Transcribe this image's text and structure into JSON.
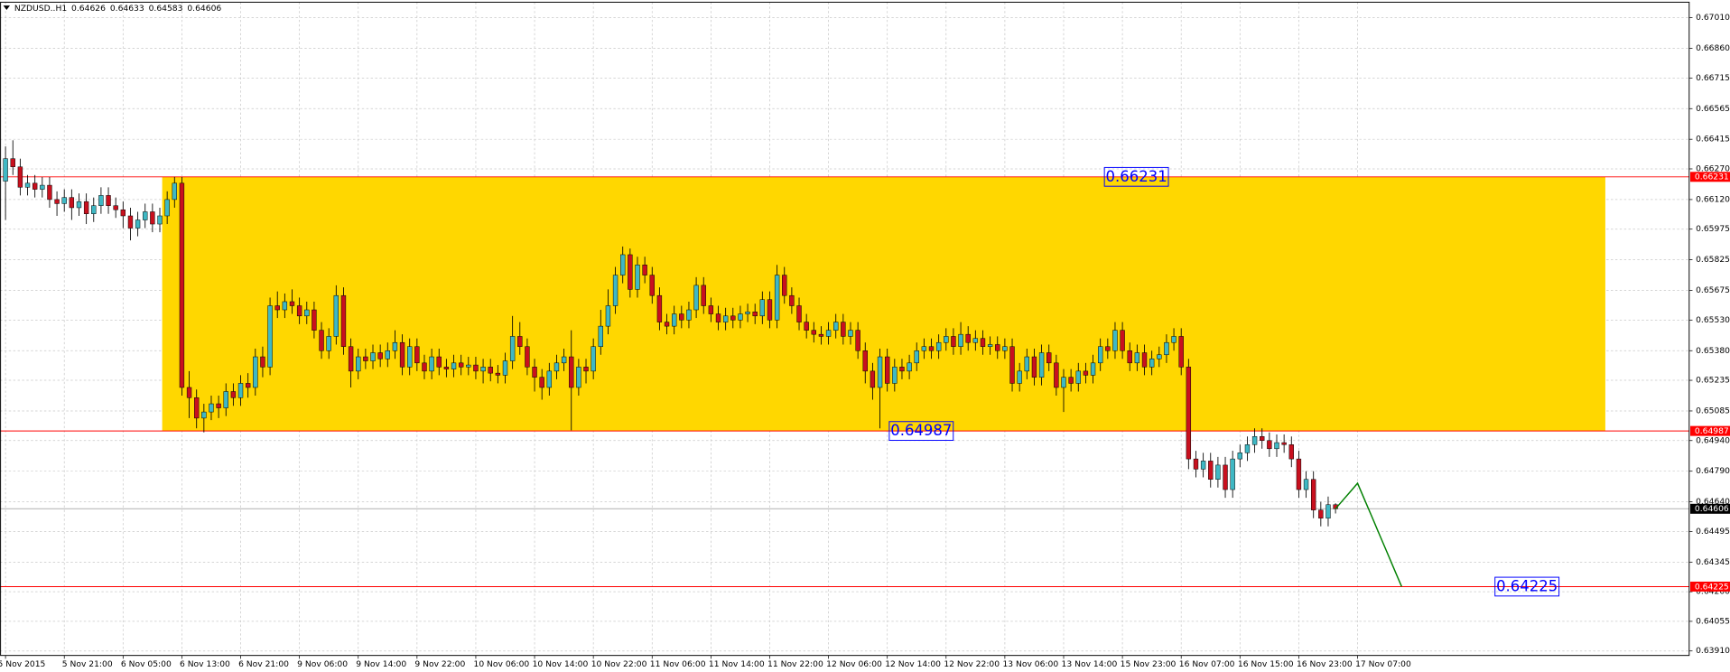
{
  "chart_data": {
    "type": "candlestick",
    "title": "NZDUSD..H1",
    "categories": [
      "5 Nov 2015",
      null,
      null,
      null,
      null,
      null,
      null,
      null,
      "5 Nov 21:00",
      null,
      null,
      null,
      null,
      null,
      null,
      null,
      "6 Nov 05:00",
      null,
      null,
      null,
      null,
      null,
      null,
      null,
      "6 Nov 13:00",
      null,
      null,
      null,
      null,
      null,
      null,
      null,
      "6 Nov 21:00",
      null,
      null,
      null,
      null,
      null,
      null,
      null,
      "9 Nov 06:00",
      null,
      null,
      null,
      null,
      null,
      null,
      null,
      "9 Nov 14:00",
      null,
      null,
      null,
      null,
      null,
      null,
      null,
      "9 Nov 22:00",
      null,
      null,
      null,
      null,
      null,
      null,
      null,
      "10 Nov 06:00",
      null,
      null,
      null,
      null,
      null,
      null,
      null,
      "10 Nov 14:00",
      null,
      null,
      null,
      null,
      null,
      null,
      null,
      "10 Nov 22:00",
      null,
      null,
      null,
      null,
      null,
      null,
      null,
      "11 Nov 06:00",
      null,
      null,
      null,
      null,
      null,
      null,
      null,
      "11 Nov 14:00",
      null,
      null,
      null,
      null,
      null,
      null,
      null,
      "11 Nov 22:00",
      null,
      null,
      null,
      null,
      null,
      null,
      null,
      "12 Nov 06:00",
      null,
      null,
      null,
      null,
      null,
      null,
      null,
      "12 Nov 14:00",
      null,
      null,
      null,
      null,
      null,
      null,
      null,
      "12 Nov 22:00",
      null,
      null,
      null,
      null,
      null,
      null,
      null,
      "13 Nov 06:00",
      null,
      null,
      null,
      null,
      null,
      null,
      null,
      "13 Nov 14:00",
      null,
      null,
      null,
      null,
      null,
      null,
      null,
      "15 Nov 23:00",
      null,
      null,
      null,
      null,
      null,
      null,
      null,
      "16 Nov 07:00",
      null,
      null,
      null,
      null,
      null,
      null,
      null,
      "16 Nov 15:00",
      null,
      null,
      null,
      null,
      null,
      null,
      null,
      "16 Nov 23:00",
      null,
      null,
      null,
      null,
      null,
      null,
      null,
      "17 Nov 07:00",
      null,
      null,
      null,
      null,
      null,
      null
    ],
    "open": [
      0.6621,
      0.6632,
      0.6628,
      0.6618,
      0.662,
      0.6617,
      0.6619,
      0.6612,
      0.661,
      0.6613,
      0.6608,
      0.6611,
      0.6605,
      0.6609,
      0.6614,
      0.6609,
      0.6607,
      0.6604,
      0.6598,
      0.6602,
      0.6606,
      0.66,
      0.6604,
      0.6612,
      0.662,
      0.652,
      0.6515,
      0.6505,
      0.6508,
      0.6512,
      0.651,
      0.6518,
      0.6515,
      0.6522,
      0.652,
      0.6535,
      0.653,
      0.656,
      0.6558,
      0.6562,
      0.656,
      0.6555,
      0.6558,
      0.6548,
      0.6538,
      0.6545,
      0.6565,
      0.654,
      0.6528,
      0.6535,
      0.6533,
      0.6537,
      0.6534,
      0.6538,
      0.6542,
      0.653,
      0.654,
      0.6532,
      0.6528,
      0.6535,
      0.653,
      0.6529,
      0.6532,
      0.653,
      0.6531,
      0.6528,
      0.653,
      0.6527,
      0.6526,
      0.6533,
      0.6545,
      0.654,
      0.653,
      0.6525,
      0.652,
      0.6528,
      0.6532,
      0.6535,
      0.652,
      0.653,
      0.6528,
      0.654,
      0.655,
      0.656,
      0.6575,
      0.6585,
      0.6568,
      0.658,
      0.6575,
      0.6565,
      0.6552,
      0.655,
      0.6556,
      0.6553,
      0.6558,
      0.657,
      0.656,
      0.6556,
      0.6552,
      0.6555,
      0.6553,
      0.6556,
      0.6557,
      0.6555,
      0.6563,
      0.6553,
      0.6575,
      0.6565,
      0.656,
      0.6552,
      0.6548,
      0.6546,
      0.6545,
      0.6548,
      0.6552,
      0.6545,
      0.6548,
      0.6538,
      0.6528,
      0.652,
      0.6535,
      0.6522,
      0.653,
      0.6528,
      0.6532,
      0.6538,
      0.654,
      0.6538,
      0.6542,
      0.6545,
      0.654,
      0.6546,
      0.6542,
      0.6544,
      0.654,
      0.6541,
      0.6538,
      0.654,
      0.6522,
      0.6528,
      0.6535,
      0.6525,
      0.6537,
      0.6532,
      0.652,
      0.6525,
      0.6522,
      0.6528,
      0.6526,
      0.6532,
      0.654,
      0.6538,
      0.6548,
      0.6538,
      0.6532,
      0.6537,
      0.653,
      0.6534,
      0.6536,
      0.6542,
      0.6545,
      0.653,
      0.6485,
      0.648,
      0.6484,
      0.6475,
      0.6482,
      0.647,
      0.6485,
      0.6488,
      0.6492,
      0.6496,
      0.6494,
      0.649,
      0.6493,
      0.6492,
      0.6485,
      0.647,
      0.6475,
      0.646,
      0.6456,
      0.64626,
      null,
      null,
      null,
      null,
      null,
      null,
      null,
      null,
      null
    ],
    "high": [
      0.6638,
      0.6641,
      0.6632,
      0.6624,
      0.6624,
      0.6623,
      0.6623,
      0.6616,
      0.6617,
      0.6617,
      0.6615,
      0.6615,
      0.6613,
      0.6618,
      0.6618,
      0.6613,
      0.6611,
      0.6608,
      0.6606,
      0.661,
      0.661,
      0.6608,
      0.6616,
      0.66231,
      0.6623,
      0.6528,
      0.6519,
      0.6512,
      0.6516,
      0.6516,
      0.6522,
      0.6522,
      0.6526,
      0.6527,
      0.6539,
      0.654,
      0.6564,
      0.6567,
      0.6566,
      0.6568,
      0.6564,
      0.6562,
      0.6562,
      0.6552,
      0.6549,
      0.657,
      0.6569,
      0.6544,
      0.6539,
      0.6539,
      0.6541,
      0.6541,
      0.6542,
      0.6548,
      0.6546,
      0.6544,
      0.6544,
      0.6536,
      0.6539,
      0.6539,
      0.6534,
      0.6536,
      0.6536,
      0.6535,
      0.6535,
      0.6534,
      0.6534,
      0.6531,
      0.6537,
      0.6555,
      0.6552,
      0.6544,
      0.6534,
      0.6529,
      0.6532,
      0.6536,
      0.6539,
      0.6548,
      0.6534,
      0.6534,
      0.6544,
      0.6558,
      0.6568,
      0.6579,
      0.6589,
      0.6588,
      0.6584,
      0.6584,
      0.6579,
      0.6569,
      0.6556,
      0.656,
      0.656,
      0.6562,
      0.6574,
      0.6574,
      0.6564,
      0.656,
      0.6559,
      0.6559,
      0.656,
      0.6561,
      0.6561,
      0.6567,
      0.6567,
      0.658,
      0.6579,
      0.6569,
      0.6564,
      0.6556,
      0.6552,
      0.655,
      0.6552,
      0.6556,
      0.6556,
      0.6552,
      0.6552,
      0.6542,
      0.6532,
      0.6539,
      0.6539,
      0.6534,
      0.6534,
      0.6536,
      0.6542,
      0.6544,
      0.6544,
      0.6546,
      0.6549,
      0.6549,
      0.6552,
      0.655,
      0.6548,
      0.6548,
      0.6545,
      0.6545,
      0.6544,
      0.6544,
      0.6532,
      0.6539,
      0.6539,
      0.6541,
      0.6541,
      0.6536,
      0.6529,
      0.6529,
      0.6532,
      0.6532,
      0.6536,
      0.6544,
      0.6544,
      0.6552,
      0.6552,
      0.6542,
      0.6541,
      0.6541,
      0.6538,
      0.654,
      0.6546,
      0.6549,
      0.6549,
      0.6534,
      0.6489,
      0.6488,
      0.6488,
      0.6486,
      0.6486,
      0.6489,
      0.6492,
      0.6496,
      0.65,
      0.65,
      0.6498,
      0.6497,
      0.6497,
      0.6496,
      0.6489,
      0.6479,
      0.6479,
      0.6464,
      0.64666,
      0.64633,
      null,
      null,
      null,
      null,
      null,
      null,
      null,
      null,
      null
    ],
    "low": [
      0.6602,
      0.6624,
      0.6614,
      0.6614,
      0.6613,
      0.6613,
      0.6608,
      0.6604,
      0.6606,
      0.6602,
      0.6604,
      0.66,
      0.6601,
      0.6605,
      0.6605,
      0.6603,
      0.6598,
      0.6592,
      0.6594,
      0.6598,
      0.6596,
      0.6596,
      0.66,
      0.6608,
      0.6516,
      0.6505,
      0.65,
      0.6498,
      0.6504,
      0.6505,
      0.6506,
      0.6511,
      0.6511,
      0.6515,
      0.6516,
      0.6525,
      0.6526,
      0.6554,
      0.6554,
      0.6556,
      0.6551,
      0.6551,
      0.6544,
      0.6534,
      0.6534,
      0.6541,
      0.6536,
      0.652,
      0.6524,
      0.6529,
      0.6529,
      0.653,
      0.653,
      0.6534,
      0.6526,
      0.6526,
      0.6528,
      0.6524,
      0.6524,
      0.6526,
      0.6525,
      0.6525,
      0.6526,
      0.6526,
      0.6524,
      0.6522,
      0.6523,
      0.6522,
      0.6522,
      0.6529,
      0.6536,
      0.6526,
      0.6518,
      0.6514,
      0.6516,
      0.6524,
      0.6528,
      0.6499,
      0.6516,
      0.6522,
      0.6524,
      0.6536,
      0.6546,
      0.6556,
      0.6571,
      0.6564,
      0.6564,
      0.6571,
      0.6561,
      0.6548,
      0.6546,
      0.6546,
      0.6549,
      0.6549,
      0.6554,
      0.6556,
      0.6552,
      0.6548,
      0.6548,
      0.6549,
      0.6549,
      0.6552,
      0.6551,
      0.6551,
      0.6549,
      0.6549,
      0.6561,
      0.6556,
      0.6548,
      0.6544,
      0.6542,
      0.6541,
      0.6541,
      0.6544,
      0.6541,
      0.6541,
      0.6534,
      0.6522,
      0.6514,
      0.65,
      0.6518,
      0.6518,
      0.6524,
      0.6524,
      0.6528,
      0.6534,
      0.6534,
      0.6534,
      0.6538,
      0.6536,
      0.6536,
      0.6538,
      0.6538,
      0.6536,
      0.6536,
      0.6534,
      0.6534,
      0.6518,
      0.6518,
      0.6524,
      0.6521,
      0.6521,
      0.6528,
      0.6516,
      0.6508,
      0.6518,
      0.6518,
      0.6522,
      0.6522,
      0.6528,
      0.6534,
      0.6534,
      0.6534,
      0.6528,
      0.6528,
      0.6526,
      0.6526,
      0.653,
      0.6532,
      0.6538,
      0.6526,
      0.648,
      0.6476,
      0.6476,
      0.6471,
      0.6471,
      0.6466,
      0.6466,
      0.6481,
      0.6484,
      0.6488,
      0.649,
      0.6486,
      0.6486,
      0.6488,
      0.6481,
      0.6466,
      0.6466,
      0.6456,
      0.6452,
      0.6452,
      0.64583,
      null,
      null,
      null,
      null,
      null,
      null,
      null,
      null,
      null
    ],
    "close": [
      0.6632,
      0.6628,
      0.6618,
      0.662,
      0.6617,
      0.6619,
      0.6612,
      0.661,
      0.6613,
      0.6608,
      0.6611,
      0.6605,
      0.6609,
      0.6614,
      0.6609,
      0.6607,
      0.6604,
      0.6598,
      0.6602,
      0.6606,
      0.66,
      0.6604,
      0.6612,
      0.662,
      0.652,
      0.6515,
      0.6505,
      0.6508,
      0.6512,
      0.651,
      0.6518,
      0.6515,
      0.6522,
      0.652,
      0.6535,
      0.653,
      0.656,
      0.6558,
      0.6562,
      0.656,
      0.6555,
      0.6558,
      0.6548,
      0.6538,
      0.6545,
      0.6565,
      0.654,
      0.6528,
      0.6535,
      0.6533,
      0.6537,
      0.6534,
      0.6538,
      0.6542,
      0.653,
      0.654,
      0.6532,
      0.6528,
      0.6535,
      0.653,
      0.6529,
      0.6532,
      0.653,
      0.6531,
      0.6528,
      0.653,
      0.6527,
      0.6526,
      0.6533,
      0.6545,
      0.654,
      0.653,
      0.6525,
      0.652,
      0.6528,
      0.6532,
      0.6535,
      0.652,
      0.653,
      0.6528,
      0.654,
      0.655,
      0.656,
      0.6575,
      0.6585,
      0.6568,
      0.658,
      0.6575,
      0.6565,
      0.6552,
      0.655,
      0.6556,
      0.6553,
      0.6558,
      0.657,
      0.656,
      0.6556,
      0.6552,
      0.6555,
      0.6553,
      0.6556,
      0.6557,
      0.6555,
      0.6563,
      0.6553,
      0.6575,
      0.6565,
      0.656,
      0.6552,
      0.6548,
      0.6546,
      0.6545,
      0.6548,
      0.6552,
      0.6545,
      0.6548,
      0.6538,
      0.6528,
      0.652,
      0.6535,
      0.6522,
      0.653,
      0.6528,
      0.6532,
      0.6538,
      0.654,
      0.6538,
      0.6542,
      0.6545,
      0.654,
      0.6546,
      0.6542,
      0.6544,
      0.654,
      0.6541,
      0.6538,
      0.654,
      0.6522,
      0.6528,
      0.6535,
      0.6525,
      0.6537,
      0.6532,
      0.652,
      0.6525,
      0.6522,
      0.6528,
      0.6526,
      0.6532,
      0.654,
      0.6538,
      0.6548,
      0.6538,
      0.6532,
      0.6537,
      0.653,
      0.6534,
      0.6536,
      0.6542,
      0.6545,
      0.653,
      0.6485,
      0.648,
      0.6484,
      0.6475,
      0.6482,
      0.647,
      0.6485,
      0.6488,
      0.6492,
      0.6496,
      0.6494,
      0.649,
      0.6493,
      0.6492,
      0.6485,
      0.647,
      0.6475,
      0.646,
      0.6456,
      0.64626,
      0.64606,
      null,
      null,
      null,
      null,
      null,
      null,
      null,
      null,
      null
    ],
    "up_color": "#3fb8c4",
    "down_color": "#c8101e",
    "wick_color": "#000000",
    "current_color": "#b0b0b0",
    "projection": {
      "color": "#008000",
      "values": [
        null,
        null,
        null,
        null,
        null,
        null,
        null,
        null,
        null,
        null,
        null,
        null,
        null,
        null,
        null,
        null,
        null,
        null,
        null,
        null,
        null,
        null,
        null,
        null,
        null,
        null,
        null,
        null,
        null,
        null,
        null,
        null,
        null,
        null,
        null,
        null,
        null,
        null,
        null,
        null,
        null,
        null,
        null,
        null,
        null,
        null,
        null,
        null,
        null,
        null,
        null,
        null,
        null,
        null,
        null,
        null,
        null,
        null,
        null,
        null,
        null,
        null,
        null,
        null,
        null,
        null,
        null,
        null,
        null,
        null,
        null,
        null,
        null,
        null,
        null,
        null,
        null,
        null,
        null,
        null,
        null,
        null,
        null,
        null,
        null,
        null,
        null,
        null,
        null,
        null,
        null,
        null,
        null,
        null,
        null,
        null,
        null,
        null,
        null,
        null,
        null,
        null,
        null,
        null,
        null,
        null,
        null,
        null,
        null,
        null,
        null,
        null,
        null,
        null,
        null,
        null,
        null,
        null,
        null,
        null,
        null,
        null,
        null,
        null,
        null,
        null,
        null,
        null,
        null,
        null,
        null,
        null,
        null,
        null,
        null,
        null,
        null,
        null,
        null,
        null,
        null,
        null,
        null,
        null,
        null,
        null,
        null,
        null,
        null,
        null,
        null,
        null,
        null,
        null,
        null,
        null,
        null,
        null,
        null,
        null,
        null,
        null,
        null,
        null,
        null,
        null,
        null,
        null,
        null,
        null,
        null,
        null,
        null,
        null,
        null,
        null,
        null,
        null,
        null,
        null,
        null,
        0.64606,
        0.64648,
        0.64689,
        0.64731,
        0.64647,
        0.64563,
        0.64478,
        0.64394,
        0.64309,
        0.64225
      ]
    },
    "zone": {
      "top": 0.66231,
      "bottom": 0.64987,
      "color": "#ffd700"
    },
    "levels": [
      {
        "value": 0.66231,
        "color": "#ff0000"
      },
      {
        "value": 0.64987,
        "color": "#ff0000"
      },
      {
        "value": 0.64225,
        "color": "#ff0000"
      }
    ],
    "level_label_color": "#0000ff",
    "ylim": [
      0.63888,
      0.67086
    ],
    "yticks": [
      {
        "value": 0.6701,
        "label": "0.67010"
      },
      {
        "value": 0.6686,
        "label": "0.66860"
      },
      0.66715,
      0.66565,
      0.66415,
      {
        "value": 0.6627,
        "label": "0.66270"
      },
      {
        "value": 0.6612,
        "label": "0.66120"
      },
      0.65975,
      0.65825,
      0.65675,
      {
        "value": 0.6553,
        "label": "0.65530"
      },
      {
        "value": 0.6538,
        "label": "0.65380"
      },
      0.65235,
      0.65085,
      {
        "value": 0.6494,
        "label": "0.64940"
      },
      {
        "value": 0.6479,
        "label": "0.64790"
      },
      {
        "value": 0.6464,
        "label": "0.64640"
      },
      0.64495,
      0.64345,
      {
        "value": 0.642,
        "label": "0.64200"
      },
      0.64055,
      {
        "value": 0.6391,
        "label": "0.63910"
      }
    ],
    "grid": true
  }
}
